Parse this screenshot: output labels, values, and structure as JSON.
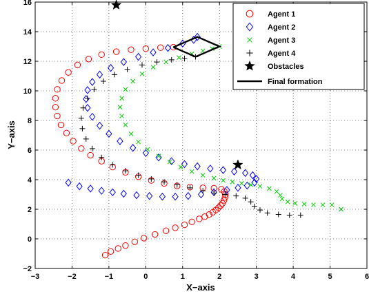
{
  "chart_data": {
    "type": "scatter",
    "title": "",
    "xlabel": "X−axis",
    "ylabel": "Y−axis",
    "xlim": [
      -3,
      6
    ],
    "ylim": [
      -2,
      16
    ],
    "xticks": [
      "−3",
      "−2",
      "−1",
      "0",
      "1",
      "2",
      "3",
      "4",
      "5",
      "6"
    ],
    "yticks": [
      "−2",
      "0",
      "2",
      "4",
      "6",
      "8",
      "10",
      "12",
      "14",
      "16"
    ],
    "grid": true,
    "legend_position": "top-right",
    "series": [
      {
        "name": "Agent 1",
        "marker": "circle",
        "color": "#ff0000",
        "points": [
          [
            -1.1,
            -1.1
          ],
          [
            -0.95,
            -0.85
          ],
          [
            -0.75,
            -0.65
          ],
          [
            -0.55,
            -0.45
          ],
          [
            -0.3,
            -0.2
          ],
          [
            -0.05,
            0.05
          ],
          [
            0.25,
            0.3
          ],
          [
            0.55,
            0.55
          ],
          [
            0.8,
            0.75
          ],
          [
            1.05,
            0.95
          ],
          [
            1.25,
            1.15
          ],
          [
            1.45,
            1.35
          ],
          [
            1.6,
            1.5
          ],
          [
            1.72,
            1.65
          ],
          [
            1.82,
            1.8
          ],
          [
            1.9,
            1.95
          ],
          [
            1.97,
            2.1
          ],
          [
            2.03,
            2.25
          ],
          [
            2.08,
            2.4
          ],
          [
            2.12,
            2.6
          ],
          [
            2.15,
            2.8
          ],
          [
            2.16,
            3.0
          ],
          [
            2.13,
            3.2
          ],
          [
            2.05,
            3.35
          ],
          [
            1.85,
            3.42
          ],
          [
            1.55,
            3.45
          ],
          [
            1.2,
            3.5
          ],
          [
            0.85,
            3.58
          ],
          [
            0.5,
            3.75
          ],
          [
            0.15,
            3.95
          ],
          [
            -0.2,
            4.2
          ],
          [
            -0.55,
            4.5
          ],
          [
            -0.9,
            4.85
          ],
          [
            -1.2,
            5.25
          ],
          [
            -1.5,
            5.65
          ],
          [
            -1.75,
            6.1
          ],
          [
            -1.97,
            6.6
          ],
          [
            -2.15,
            7.15
          ],
          [
            -2.3,
            7.7
          ],
          [
            -2.4,
            8.3
          ],
          [
            -2.45,
            8.9
          ],
          [
            -2.45,
            9.5
          ],
          [
            -2.4,
            10.1
          ],
          [
            -2.28,
            10.7
          ],
          [
            -2.1,
            11.25
          ],
          [
            -1.85,
            11.75
          ],
          [
            -1.55,
            12.15
          ],
          [
            -1.2,
            12.45
          ],
          [
            -0.8,
            12.65
          ],
          [
            -0.4,
            12.78
          ],
          [
            0,
            12.85
          ],
          [
            0.4,
            12.92
          ],
          [
            0.75,
            12.95
          ]
        ]
      },
      {
        "name": "Agent 2",
        "marker": "diamond",
        "color": "#0000ff",
        "points": [
          [
            -2.1,
            3.8
          ],
          [
            -1.8,
            3.55
          ],
          [
            -1.5,
            3.4
          ],
          [
            -1.2,
            3.25
          ],
          [
            -0.9,
            3.15
          ],
          [
            -0.6,
            3.05
          ],
          [
            -0.25,
            2.95
          ],
          [
            0.1,
            2.9
          ],
          [
            0.45,
            2.85
          ],
          [
            0.8,
            2.85
          ],
          [
            1.15,
            2.9
          ],
          [
            1.5,
            3.0
          ],
          [
            1.85,
            3.15
          ],
          [
            2.2,
            3.3
          ],
          [
            2.5,
            3.45
          ],
          [
            2.75,
            3.6
          ],
          [
            2.95,
            3.8
          ],
          [
            3.0,
            4.05
          ],
          [
            2.9,
            4.3
          ],
          [
            2.7,
            4.45
          ],
          [
            2.4,
            4.55
          ],
          [
            2.1,
            4.65
          ],
          [
            1.75,
            4.75
          ],
          [
            1.4,
            4.9
          ],
          [
            1.05,
            5.05
          ],
          [
            0.7,
            5.25
          ],
          [
            0.35,
            5.5
          ],
          [
            0.0,
            5.8
          ],
          [
            -0.35,
            6.15
          ],
          [
            -0.7,
            6.6
          ],
          [
            -1.0,
            7.1
          ],
          [
            -1.25,
            7.65
          ],
          [
            -1.45,
            8.25
          ],
          [
            -1.58,
            8.85
          ],
          [
            -1.62,
            9.45
          ],
          [
            -1.58,
            10.05
          ],
          [
            -1.45,
            10.6
          ],
          [
            -1.25,
            11.1
          ],
          [
            -0.95,
            11.55
          ],
          [
            -0.6,
            11.95
          ],
          [
            -0.2,
            12.3
          ],
          [
            0.2,
            12.6
          ],
          [
            0.6,
            12.9
          ],
          [
            1.0,
            13.2
          ],
          [
            1.3,
            13.45
          ],
          [
            1.4,
            13.65
          ]
        ]
      },
      {
        "name": "Agent 3",
        "marker": "x",
        "color": "#00cc00",
        "points": [
          [
            5.3,
            2.0
          ],
          [
            5.05,
            2.3
          ],
          [
            4.8,
            2.3
          ],
          [
            4.55,
            2.3
          ],
          [
            4.3,
            2.35
          ],
          [
            4.05,
            2.4
          ],
          [
            3.85,
            2.5
          ],
          [
            3.7,
            2.7
          ],
          [
            3.65,
            2.95
          ],
          [
            3.55,
            3.2
          ],
          [
            3.35,
            3.4
          ],
          [
            3.1,
            3.55
          ],
          [
            2.85,
            3.65
          ],
          [
            2.6,
            3.75
          ],
          [
            2.35,
            3.85
          ],
          [
            2.1,
            3.95
          ],
          [
            1.85,
            4.1
          ],
          [
            1.55,
            4.3
          ],
          [
            1.25,
            4.55
          ],
          [
            0.95,
            4.85
          ],
          [
            0.65,
            5.2
          ],
          [
            0.35,
            5.6
          ],
          [
            0.05,
            6.05
          ],
          [
            -0.2,
            6.55
          ],
          [
            -0.4,
            7.1
          ],
          [
            -0.55,
            7.7
          ],
          [
            -0.65,
            8.3
          ],
          [
            -0.7,
            8.9
          ],
          [
            -0.65,
            9.5
          ],
          [
            -0.55,
            10.1
          ],
          [
            -0.35,
            10.65
          ],
          [
            -0.1,
            11.15
          ],
          [
            0.2,
            11.6
          ],
          [
            0.55,
            11.95
          ],
          [
            0.9,
            12.25
          ],
          [
            1.25,
            12.5
          ],
          [
            1.55,
            12.7
          ],
          [
            1.8,
            12.85
          ],
          [
            2.0,
            13.0
          ]
        ]
      },
      {
        "name": "Agent 4",
        "marker": "plus",
        "color": "#000000",
        "points": [
          [
            4.2,
            1.6
          ],
          [
            3.9,
            1.6
          ],
          [
            3.6,
            1.65
          ],
          [
            3.3,
            1.75
          ],
          [
            3.1,
            1.95
          ],
          [
            2.95,
            2.2
          ],
          [
            2.85,
            2.5
          ],
          [
            2.7,
            2.75
          ],
          [
            2.45,
            2.9
          ],
          [
            2.15,
            3.0
          ],
          [
            1.85,
            3.1
          ],
          [
            1.55,
            3.25
          ],
          [
            1.2,
            3.45
          ],
          [
            0.85,
            3.65
          ],
          [
            0.5,
            3.85
          ],
          [
            0.15,
            4.05
          ],
          [
            -0.2,
            4.3
          ],
          [
            -0.55,
            4.6
          ],
          [
            -0.9,
            5.0
          ],
          [
            -1.2,
            5.5
          ],
          [
            -1.45,
            6.1
          ],
          [
            -1.62,
            6.75
          ],
          [
            -1.72,
            7.45
          ],
          [
            -1.75,
            8.15
          ],
          [
            -1.7,
            8.85
          ],
          [
            -1.58,
            9.5
          ],
          [
            -1.4,
            10.1
          ],
          [
            -1.15,
            10.65
          ],
          [
            -0.85,
            11.1
          ],
          [
            -0.5,
            11.45
          ],
          [
            -0.1,
            11.75
          ],
          [
            0.3,
            11.95
          ],
          [
            0.7,
            12.1
          ],
          [
            1.05,
            12.2
          ],
          [
            1.35,
            12.3
          ]
        ]
      },
      {
        "name": "Obstacles",
        "marker": "star",
        "color": "#000000",
        "points": [
          [
            -0.8,
            15.8
          ],
          [
            2.5,
            5.0
          ]
        ]
      },
      {
        "name": "Final formation",
        "marker": "line",
        "color": "#000000",
        "points": [
          [
            0.75,
            12.95
          ],
          [
            1.4,
            13.65
          ],
          [
            2.0,
            13.0
          ],
          [
            1.35,
            12.3
          ],
          [
            0.75,
            12.95
          ]
        ]
      }
    ]
  }
}
